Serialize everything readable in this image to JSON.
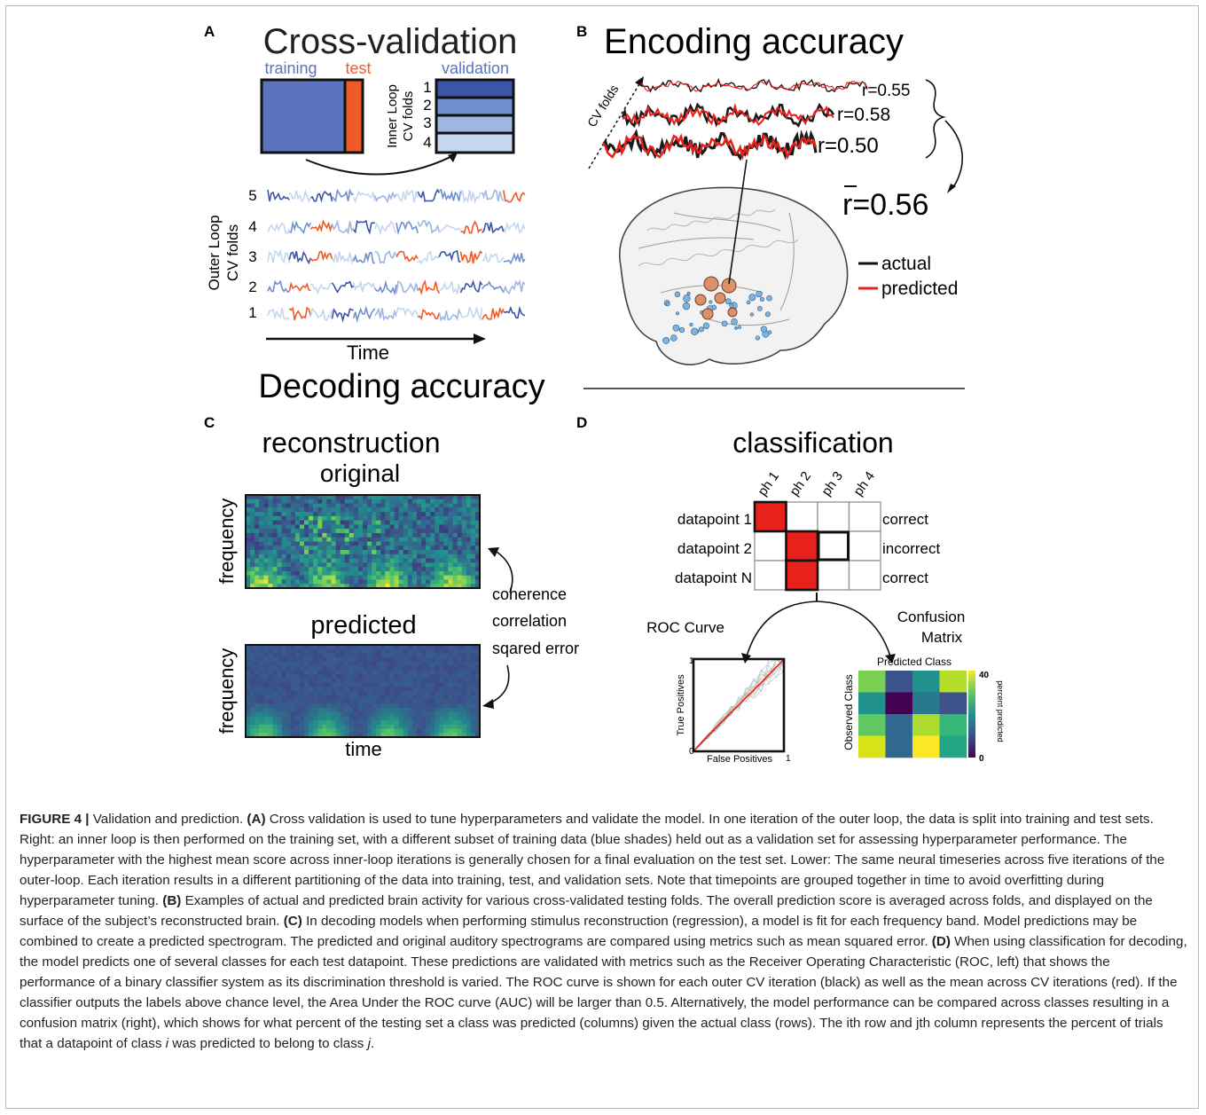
{
  "panels": {
    "A": {
      "letter": "A",
      "title": "Cross-validation",
      "training_label": "training",
      "test_label": "test",
      "validation_label": "validation",
      "inner_loop_label": "Inner Loop",
      "inner_cv_label": "CV folds",
      "inner_fold_numbers": [
        "1",
        "2",
        "3",
        "4"
      ],
      "outer_loop_label": "Outer Loop",
      "outer_cv_label": "CV folds",
      "outer_fold_numbers": [
        "5",
        "4",
        "3",
        "2",
        "1"
      ],
      "time_label": "Time"
    },
    "B": {
      "letter": "B",
      "title": "Encoding accuracy",
      "cv_folds_label": "CV folds",
      "r_values": [
        "r=0.55",
        "r=0.58",
        "r=0.50"
      ],
      "mean_r": "r=0.56",
      "legend_actual": "actual",
      "legend_predicted": "predicted"
    },
    "decoding_title": "Decoding accuracy",
    "C": {
      "letter": "C",
      "title_line1": "reconstruction",
      "title_line2": "original",
      "predicted_label": "predicted",
      "frequency_label": "frequency",
      "time_label": "time",
      "metrics": [
        "coherence",
        "correlation",
        "sqared error"
      ]
    },
    "D": {
      "letter": "D",
      "title": "classification",
      "phonemes": [
        "ph 1",
        "ph 2",
        "ph 3",
        "ph 4"
      ],
      "rows": [
        {
          "label": "datapoint 1",
          "result": "correct"
        },
        {
          "label": "datapoint 2",
          "result": "incorrect"
        },
        {
          "label": "datapoint N",
          "result": "correct"
        }
      ],
      "roc_title": "ROC Curve",
      "confusion_title_line1": "Confusion",
      "confusion_title_line2": "Matrix",
      "roc_ylabel": "True Positives",
      "roc_xlabel": "False Positives",
      "roc_tick_0": "0",
      "roc_tick_1x": "1",
      "roc_tick_1y": "1",
      "cm_xlabel": "Predicted Class",
      "cm_ylabel": "Observed Class",
      "cm_colorbar_label": "percent predicted",
      "cm_colorbar_max": "40",
      "cm_colorbar_min": "0"
    }
  },
  "caption": {
    "figure_label": "FIGURE 4 |",
    "title": "Validation and prediction.",
    "A_tag": "(A)",
    "A_text": "Cross validation is used to tune hyperparameters and validate the model. In one iteration of the outer loop, the data is split into training and test sets. Right: an inner loop is then performed on the training set, with a different subset of training data (blue shades) held out as a validation set for assessing hyperparameter performance. The hyperparameter with the highest mean score across inner-loop iterations is generally chosen for a final evaluation on the test set. Lower: The same neural timeseries across five iterations of the outer-loop. Each iteration results in a different partitioning of the data into training, test, and validation sets. Note that timepoints are grouped together in time to avoid overfitting during hyperparameter tuning.",
    "B_tag": "(B)",
    "B_text": "Examples of actual and predicted brain activity for various cross-validated testing folds. The overall prediction score is averaged across folds, and displayed on the surface of the subject’s reconstructed brain.",
    "C_tag": "(C)",
    "C_text": "In decoding models when performing stimulus reconstruction (regression), a model is fit for each frequency band. Model predictions may be combined to create a predicted spectrogram. The predicted and original auditory spectrograms are compared using metrics such as mean squared error.",
    "D_tag": "(D)",
    "D_text": "When using classification for decoding, the model predicts one of several classes for each test datapoint. These predictions are validated with metrics such as the Receiver Operating Characteristic (ROC, left) that shows the performance of a binary classifier system as its discrimination threshold is varied. The ROC curve is shown for each outer CV iteration (black) as well as the mean across CV iterations (red). If the classifier outputs the labels above chance level, the Area Under the ROC curve (AUC) will be larger than 0.5. Alternatively, the model performance can be compared across classes resulting in a confusion matrix (right), which shows for what percent of the testing set a class was predicted (columns) given the actual class (rows). The ith row and jth column represents the percent of trials that a datapoint of class",
    "D_i": "i",
    "D_mid": "was predicted to belong to class",
    "D_j": "j",
    "D_end": "."
  },
  "colors": {
    "training_blue": "#5b73bf",
    "test_orange": "#f05a28",
    "red": "#e8211c",
    "dark_navy": "#2c3e8c"
  }
}
